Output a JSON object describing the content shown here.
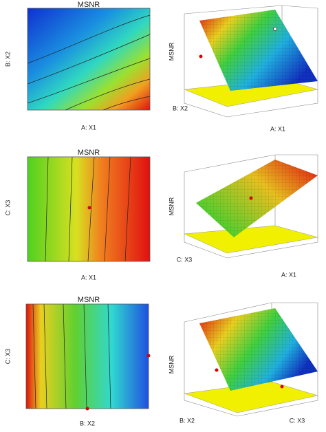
{
  "chart_data": [
    {
      "type": "contour",
      "title": "MSNR",
      "x_label": "A: X1",
      "y_label": "B: X2"
    },
    {
      "type": "surface",
      "z_label": "MSNR",
      "x_label": "A: X1",
      "y_label": "B: X2"
    },
    {
      "type": "contour",
      "title": "MSNR",
      "x_label": "A: X1",
      "y_label": "C: X3"
    },
    {
      "type": "surface",
      "z_label": "MSNR",
      "x_label": "A: X1",
      "y_label": "C: X3"
    },
    {
      "type": "contour",
      "title": "MSNR",
      "x_label": "B: X2",
      "y_label": "C: X3"
    },
    {
      "type": "surface",
      "z_label": "MSNR",
      "x_label": "C: X3",
      "y_label": "B: X2"
    }
  ]
}
